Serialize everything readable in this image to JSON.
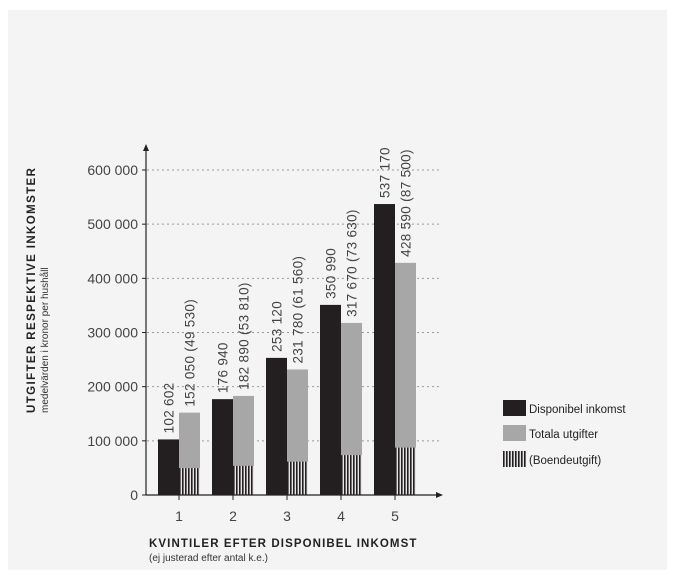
{
  "chart_data": {
    "type": "bar",
    "categories": [
      "1",
      "2",
      "3",
      "4",
      "5"
    ],
    "ylim": [
      0,
      600000
    ],
    "y_ticks": [
      {
        "value": 0,
        "label": "0"
      },
      {
        "value": 100000,
        "label": "100 000"
      },
      {
        "value": 200000,
        "label": "200 000"
      },
      {
        "value": 300000,
        "label": "300 000"
      },
      {
        "value": 400000,
        "label": "400 000"
      },
      {
        "value": 500000,
        "label": "500 000"
      },
      {
        "value": 600000,
        "label": "600 000"
      }
    ],
    "grid": "horizontal dotted",
    "ylabel": "UTGIFTER RESPEKTIVE INKOMSTER",
    "ylabel_sub": "medelvärden i kronor per hushåll",
    "xlabel": "KVINTILER EFTER DISPONIBEL INKOMST",
    "xlabel_sub": "(ej justerad efter antal k.e.)",
    "legend_position": "right",
    "series": [
      {
        "name": "Disponibel inkomst",
        "color": "#231f20",
        "values": [
          102602,
          176940,
          253120,
          350990,
          537170
        ],
        "labels": [
          "102 602",
          "176 940",
          "253 120",
          "350 990",
          "537 170"
        ]
      },
      {
        "name": "Totala utgifter",
        "color": "#a7a7a7",
        "values": [
          152050,
          182890,
          231780,
          317670,
          428590
        ],
        "labels": [
          "152 050 (49 530)",
          "182 890 (53 810)",
          "231 780 (61 560)",
          "317 670 (73 630)",
          "428 590 (87 500)"
        ]
      },
      {
        "name": "(Boendeutgift)",
        "pattern": "vertical-stripes",
        "stacked_within": "Totala utgifter",
        "values": [
          49530,
          53810,
          61560,
          73630,
          87500
        ]
      }
    ]
  }
}
